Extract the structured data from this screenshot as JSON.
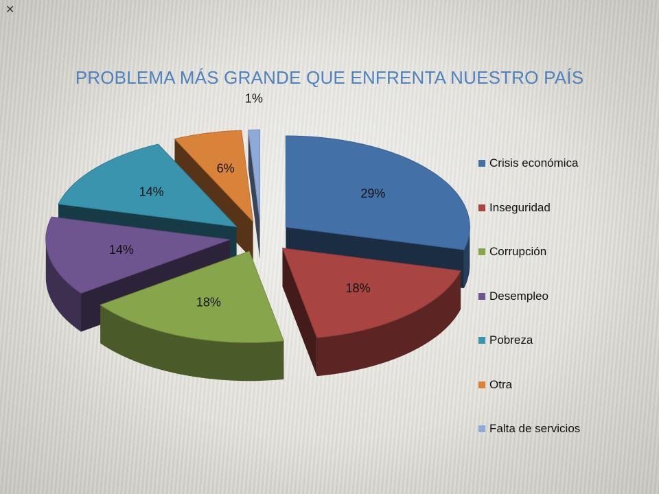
{
  "corner_mark": "✕",
  "chart_data": {
    "type": "pie",
    "title": "PROBLEMA MÁS GRANDE QUE ENFRENTA NUESTRO PAÍS",
    "legend_position": "right",
    "categories": [
      "Crisis económica",
      "Inseguridad",
      "Corrupción",
      "Desempleo",
      "Pobreza",
      "Otra",
      "Falta de servicios"
    ],
    "values": [
      29,
      18,
      18,
      14,
      14,
      6,
      1
    ],
    "labels": [
      "29%",
      "18%",
      "18%",
      "14%",
      "14%",
      "6%",
      "1%"
    ],
    "colors": [
      "#4470a8",
      "#a84441",
      "#87a54a",
      "#6f558f",
      "#3a94ae",
      "#d9833a",
      "#8faad8"
    ]
  }
}
